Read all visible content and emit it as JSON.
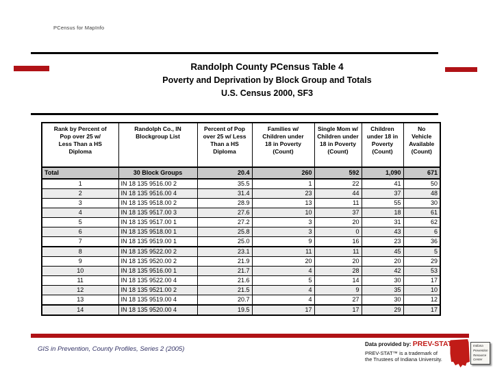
{
  "app_label": "PCensus for MapInfo",
  "title": {
    "line1": "Randolph County PCensus Table 4",
    "line2": "Poverty and Deprivation by Block Group and Totals",
    "line3": "U.S. Census 2000, SF3"
  },
  "table": {
    "columns": [
      {
        "id": "rank",
        "label": "Rank by Percent of\nPop over 25 w/\nLess Than a HS\nDiploma"
      },
      {
        "id": "blockgroup",
        "label": "Randolph Co., IN\nBlockgroup List"
      },
      {
        "id": "pct-no-hs",
        "label": "Percent of Pop\nover 25 w/ Less\nThan a HS\nDiploma"
      },
      {
        "id": "families-poverty",
        "label": "Families w/\nChildren under\n18 in Poverty\n(Count)"
      },
      {
        "id": "single-mom-poverty",
        "label": "Single Mom w/\nChildren under\n18 in Poverty\n(Count)"
      },
      {
        "id": "children-poverty",
        "label": "Children\nunder 18 in\nPoverty\n(Count)"
      },
      {
        "id": "no-vehicle",
        "label": "No\nVehicle\nAvailable\n(Count)"
      }
    ],
    "total_row": [
      "Total",
      "30 Block Groups",
      "20.4",
      "260",
      "592",
      "1,090",
      "671"
    ],
    "rows": [
      [
        "1",
        "IN 18 135 9516.00 2",
        "35.5",
        "1",
        "22",
        "41",
        "50"
      ],
      [
        "2",
        "IN 18 135 9516.00 4",
        "31.4",
        "23",
        "44",
        "37",
        "48"
      ],
      [
        "3",
        "IN 18 135 9518.00 2",
        "28.9",
        "13",
        "11",
        "55",
        "30"
      ],
      [
        "4",
        "IN 18 135 9517.00 3",
        "27.6",
        "10",
        "37",
        "18",
        "61"
      ],
      [
        "5",
        "IN 18 135 9517.00 1",
        "27.2",
        "3",
        "20",
        "31",
        "62"
      ],
      [
        "6",
        "IN 18 135 9518.00 1",
        "25.8",
        "3",
        "0",
        "43",
        "6"
      ],
      [
        "7",
        "IN 18 135 9519.00 1",
        "25.0",
        "9",
        "16",
        "23",
        "36"
      ],
      [
        "8",
        "IN 18 135 9522.00 2",
        "23.1",
        "11",
        "11",
        "45",
        "5"
      ],
      [
        "9",
        "IN 18 135 9520.00 2",
        "21.9",
        "20",
        "20",
        "20",
        "29"
      ],
      [
        "10",
        "IN 18 135 9516.00 1",
        "21.7",
        "4",
        "28",
        "42",
        "53"
      ],
      [
        "11",
        "IN 18 135 9522.00 4",
        "21.6",
        "5",
        "14",
        "30",
        "17"
      ],
      [
        "12",
        "IN 18 135 9521.00 2",
        "21.5",
        "4",
        "9",
        "35",
        "10"
      ],
      [
        "13",
        "IN 18 135 9519.00 4",
        "20.7",
        "4",
        "27",
        "30",
        "12"
      ],
      [
        "14",
        "IN 18 135 9520.00 4",
        "19.5",
        "17",
        "17",
        "29",
        "17"
      ]
    ],
    "thick_rule_after_data_rows": [
      7,
      13
    ]
  },
  "footer": {
    "left_text": "GIS in Prevention, County Profiles, Series 2 (2005)",
    "data_provided_prefix": "Data provided by: ",
    "prevstat_name": "PREV-STAT™",
    "trademark_line1": "PREV-STAT™ is a trademark of",
    "trademark_line2": "the Trustees of Indiana University.",
    "iprc_label": "Indiana\nPrevention\nResource\nCenter"
  },
  "colors": {
    "accent_red": "#b01216",
    "prevstat_red": "#c11b17",
    "footer_text": "#333366",
    "total_row_bg": "#c9c9c9",
    "alt_row_bg": "#ececec"
  }
}
